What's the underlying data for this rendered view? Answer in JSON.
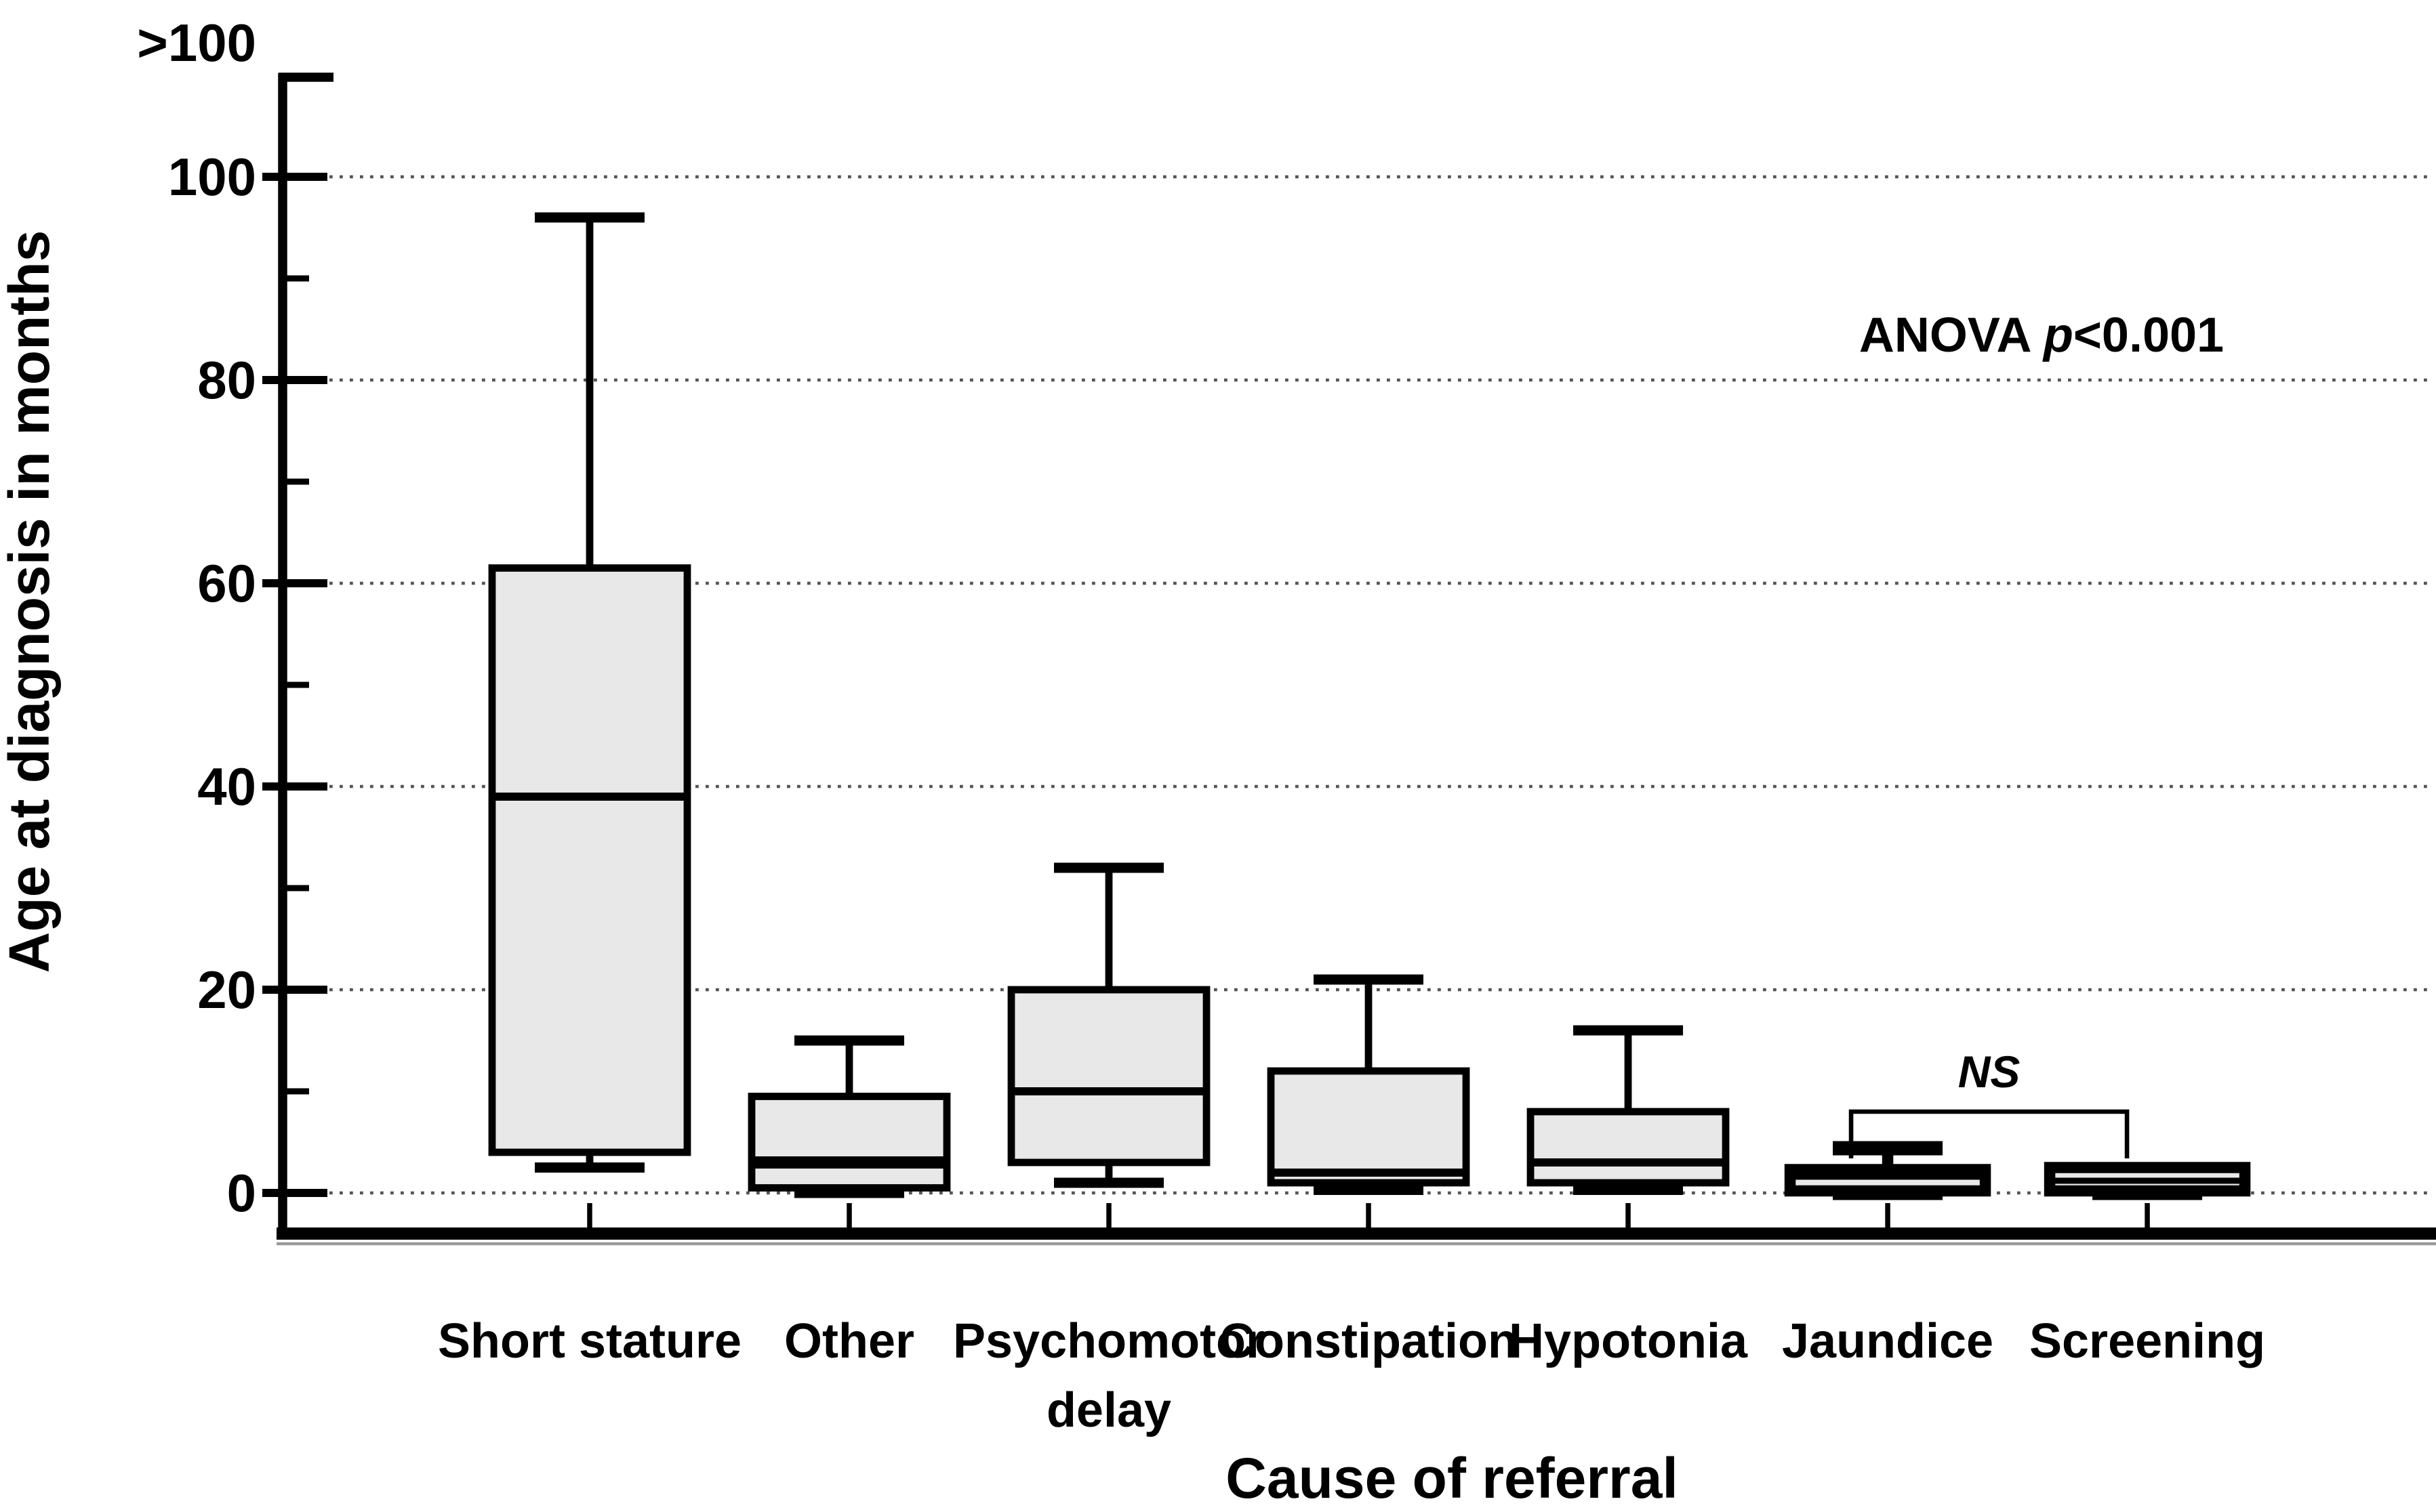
{
  "figure": {
    "y_axis_title": "Age at diagnosis in months",
    "x_axis_title": "Cause of referral",
    "anova": {
      "prefix": "ANOVA ",
      "p": "p",
      "rest": "<0.001"
    }
  },
  "chart_data": {
    "type": "box",
    "title": "",
    "xlabel": "Cause of referral",
    "ylabel": "Age at diagnosis in months",
    "ylim": [
      0,
      100
    ],
    "y_axis_top_label": ">100",
    "y_major_ticks": [
      0,
      20,
      40,
      60,
      80,
      100
    ],
    "y_minor_ticks": [
      10,
      30,
      50,
      70,
      90
    ],
    "grid": "dotted horizontal lines at major ticks",
    "legend_position": "none",
    "categories": [
      "Short stature",
      "Other",
      "Psychomotor\ndelay",
      "Constipation",
      "Hypotonia",
      "Jaundice",
      "Screening"
    ],
    "series": [
      {
        "name": "Short stature",
        "min": 2.5,
        "q1": 4,
        "median": 39,
        "q3": 61.5,
        "max": 96,
        "median_weight": 4
      },
      {
        "name": "Other",
        "min": 0,
        "q1": 0.5,
        "median": 3,
        "q3": 9.5,
        "max": 15,
        "median_weight": 6
      },
      {
        "name": "Psychomotor delay",
        "min": 1,
        "q1": 3,
        "median": 10,
        "q3": 20,
        "max": 32,
        "median_weight": 4
      },
      {
        "name": "Constipation",
        "min": 0.3,
        "q1": 1,
        "median": 2,
        "q3": 12,
        "max": 21,
        "median_weight": 4
      },
      {
        "name": "Hypotonia",
        "min": 0.3,
        "q1": 1,
        "median": 3,
        "q3": 8,
        "max": 16,
        "median_weight": 4
      },
      {
        "name": "Jaundice",
        "min": 0,
        "q1": 0.2,
        "median": 1.6,
        "q3": 2.3,
        "max": 4.4,
        "median_weight": 3,
        "thick": true
      },
      {
        "name": "Screening",
        "min": 0,
        "q1": 0.2,
        "median": 1.2,
        "q3": 2.5,
        "max": 2.5,
        "median_weight": 3,
        "thick": true
      }
    ],
    "annotations": [
      {
        "type": "text",
        "label": "ANOVA p<0.001",
        "position": "upper right"
      },
      {
        "type": "bracket",
        "label": "NS",
        "between": [
          "Jaundice",
          "Screening"
        ],
        "meaning": "not significant"
      }
    ],
    "colors": {
      "box_fill": "#e8e8e8",
      "box_stroke": "#000000",
      "gridline": "#555555",
      "background": "#ffffff",
      "text": "#000000"
    }
  }
}
